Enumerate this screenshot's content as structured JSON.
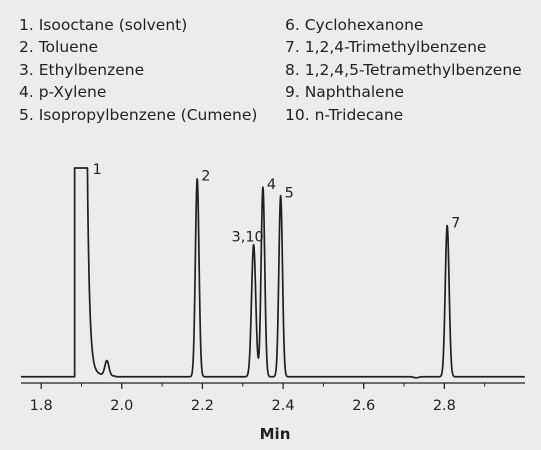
{
  "legend": {
    "left": [
      "1. Isooctane (solvent)",
      "2. Toluene",
      "3. Ethylbenzene",
      "4. p-Xylene",
      "5. Isopropylbenzene (Cumene)"
    ],
    "right": [
      "6. Cyclohexanone",
      "7. 1,2,4-Trimethylbenzene",
      "8. 1,2,4,5-Tetramethylbenzene",
      "9. Naphthalene",
      "10. n-Tridecane"
    ]
  },
  "chart_data": {
    "type": "line",
    "title": "",
    "xlabel": "Min",
    "ylabel": "",
    "xlim": [
      1.75,
      3.0
    ],
    "ylim": [
      0,
      100
    ],
    "x_ticks": [
      "1.8",
      "2.0",
      "2.2",
      "2.4",
      "2.6",
      "2.8"
    ],
    "x_tick_values": [
      1.8,
      2.0,
      2.2,
      2.4,
      2.6,
      2.8
    ],
    "grid": false,
    "legend": "top",
    "baseline": 2,
    "solvent_peak": {
      "label": "1",
      "start": 1.883,
      "end": 1.915,
      "height": 100,
      "tail": 1.965
    },
    "peaks": [
      {
        "label": "",
        "x": 1.963,
        "height": 9,
        "width": 0.005
      },
      {
        "label": "2",
        "x": 2.187,
        "height": 95,
        "width": 0.0045
      },
      {
        "label": "3,10",
        "x": 2.327,
        "height": 64,
        "width": 0.0052
      },
      {
        "label": "4",
        "x": 2.35,
        "height": 91,
        "width": 0.0045
      },
      {
        "label": "5",
        "x": 2.394,
        "height": 87,
        "width": 0.0045
      },
      {
        "label": "",
        "x": 2.73,
        "height": 1.5,
        "width": 0.006
      },
      {
        "label": "7",
        "x": 2.807,
        "height": 73,
        "width": 0.0048
      }
    ]
  }
}
